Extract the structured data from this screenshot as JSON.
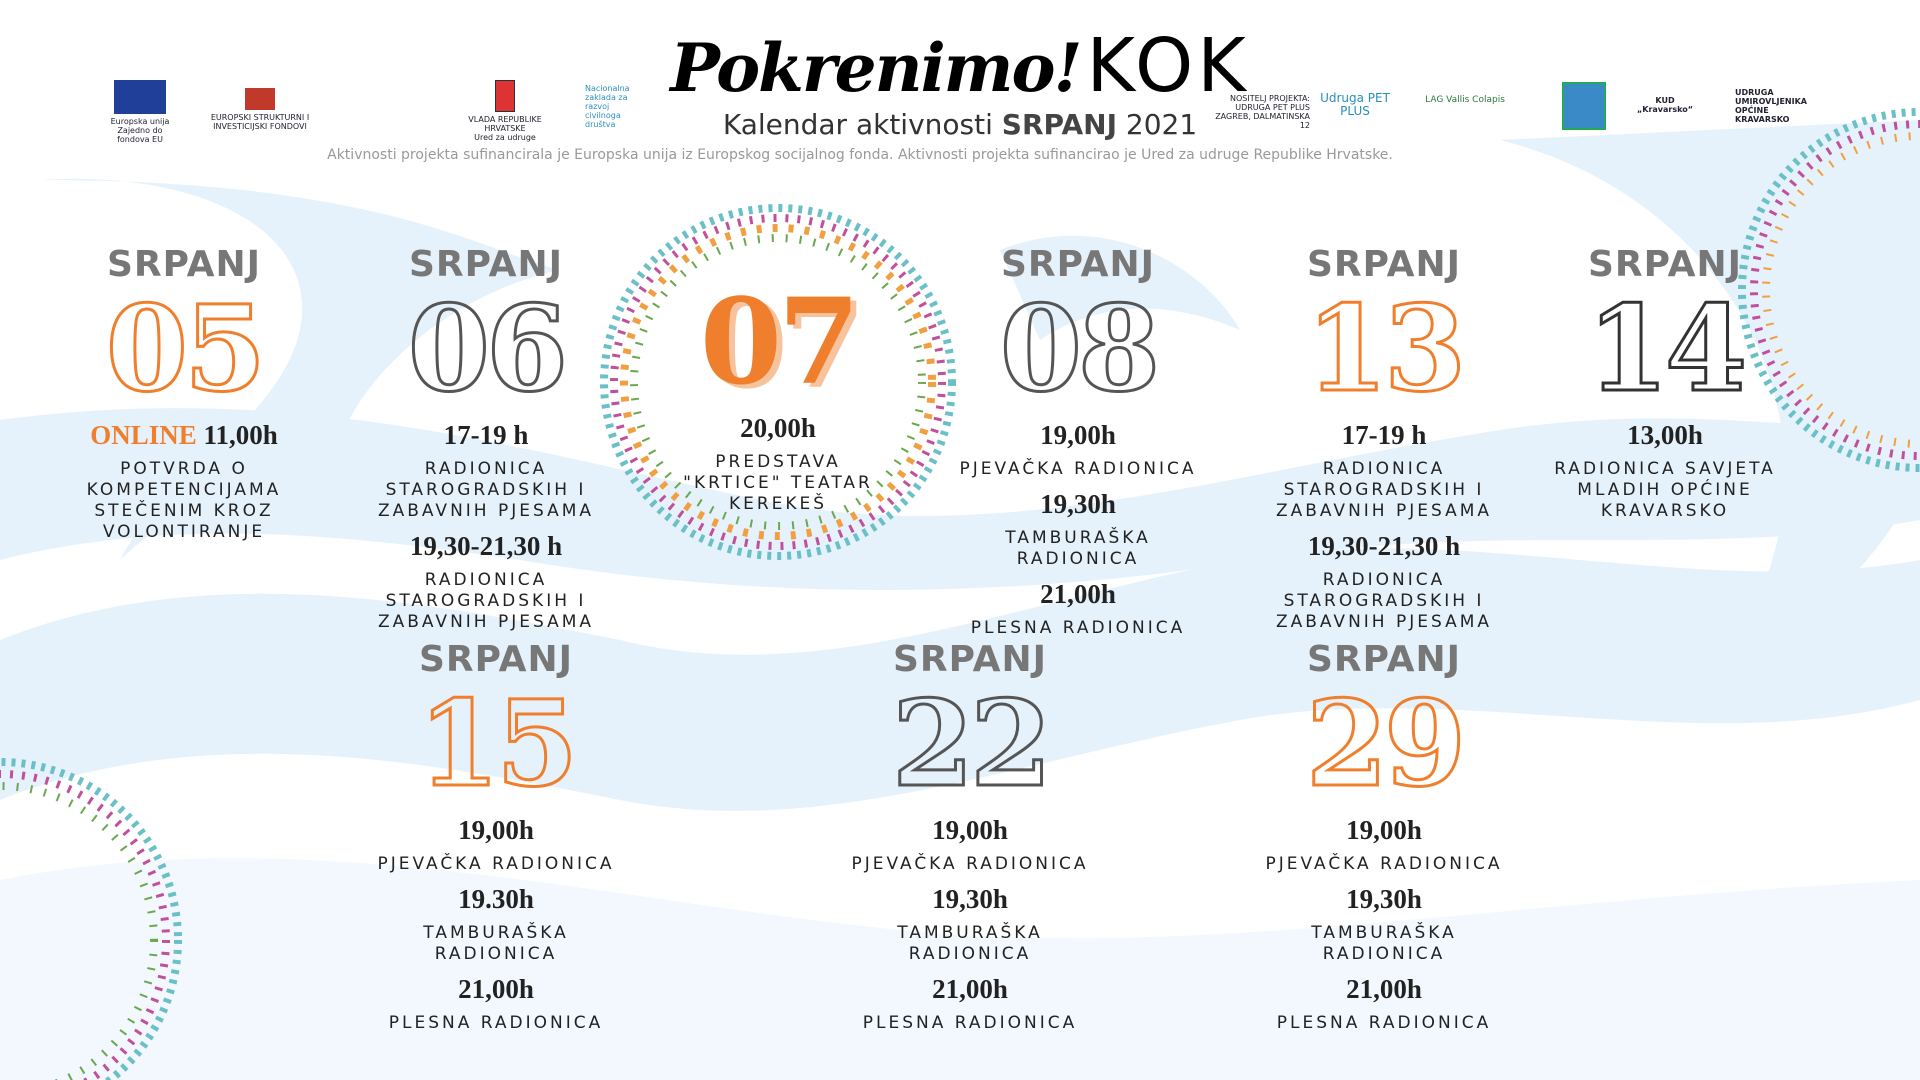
{
  "header": {
    "brand_left": "Pokrenimo!",
    "brand_right": "KOK",
    "subtitle_prefix": "Kalendar aktivnosti",
    "subtitle_month": "SRPANJ",
    "subtitle_year": "2021",
    "note": "Aktivnosti projekta sufinancirala je Europska unija iz Europskog socijalnog fonda.  Aktivnosti projekta sufinancirao je Ured za udruge Republike Hrvatske."
  },
  "logos": [
    "Europska unija Zajedno do fondova EU",
    "EUROPSKI STRUKTURNI I INVESTICIJSKI FONDOVI",
    "VLADA REPUBLIKE HRVATSKE",
    "Ured za udruge",
    "Nacionalna zaklada za razvoj civilnoga društva",
    "NOSITELJ PROJEKTA: UDRUGA PET PLUS ZAGREB, DALMATINSKA 12",
    "Udruga PET PLUS",
    "LAG Vallis Colapis",
    "KUD „Kravarsko“",
    "UDRUGA UMIROVLJENIKA OPĆINE KRAVARSKO"
  ],
  "days": [
    {
      "month": "SRPANJ",
      "day": "05",
      "color": "#f07f2d",
      "filled": false,
      "entries": [
        {
          "tag": "ONLINE",
          "time": "11,00h",
          "label": "POTVRDA O KOMPETENCIJAMA STEČENIM KROZ VOLONTIRANJE"
        }
      ]
    },
    {
      "month": "SRPANJ",
      "day": "06",
      "color": "#555555",
      "filled": false,
      "entries": [
        {
          "time": "17-19 h",
          "label": "RADIONICA STAROGRADSKIH I ZABAVNIH PJESAMA"
        },
        {
          "time": "19,30-21,30 h",
          "label": "RADIONICA STAROGRADSKIH I ZABAVNIH PJESAMA"
        }
      ]
    },
    {
      "month": null,
      "day": "07",
      "color": "#f07f2d",
      "filled": true,
      "entries": [
        {
          "time": "20,00h",
          "label": "PREDSTAVA \"KRTICE\" TEATAR KEREKEŠ"
        }
      ]
    },
    {
      "month": "SRPANJ",
      "day": "08",
      "color": "#555555",
      "filled": false,
      "entries": [
        {
          "time": "19,00h",
          "label": "PJEVAČKA RADIONICA"
        },
        {
          "time": "19,30h",
          "label": "TAMBURAŠKA RADIONICA"
        },
        {
          "time": "21,00h",
          "label": "PLESNA RADIONICA"
        }
      ]
    },
    {
      "month": "SRPANJ",
      "day": "13",
      "color": "#f07f2d",
      "filled": false,
      "entries": [
        {
          "time": "17-19 h",
          "label": "RADIONICA STAROGRADSKIH I ZABAVNIH PJESAMA"
        },
        {
          "time": "19,30-21,30 h",
          "label": "RADIONICA STAROGRADSKIH I ZABAVNIH PJESAMA"
        }
      ]
    },
    {
      "month": "SRPANJ",
      "day": "14",
      "color": "#333333",
      "filled": false,
      "entries": [
        {
          "time": "13,00h",
          "label": "RADIONICA SAVJETA MLADIH OPĆINE KRAVARSKO"
        }
      ]
    },
    {
      "month": "SRPANJ",
      "day": "15",
      "color": "#f07f2d",
      "filled": false,
      "entries": [
        {
          "time": "19,00h",
          "label": "PJEVAČKA RADIONICA"
        },
        {
          "time": "19.30h",
          "label": "TAMBURAŠKA RADIONICA"
        },
        {
          "time": "21,00h",
          "label": "PLESNA RADIONICA"
        }
      ]
    },
    {
      "month": "SRPANJ",
      "day": "22",
      "color": "#555555",
      "filled": false,
      "entries": [
        {
          "time": "19,00h",
          "label": "PJEVAČKA RADIONICA"
        },
        {
          "time": "19,30h",
          "label": "TAMBURAŠKA RADIONICA"
        },
        {
          "time": "21,00h",
          "label": "PLESNA RADIONICA"
        }
      ]
    },
    {
      "month": "SRPANJ",
      "day": "29",
      "color": "#f07f2d",
      "filled": false,
      "entries": [
        {
          "time": "19,00h",
          "label": "PJEVAČKA RADIONICA"
        },
        {
          "time": "19,30h",
          "label": "TAMBURAŠKA RADIONICA"
        },
        {
          "time": "21,00h",
          "label": "PLESNA RADIONICA"
        }
      ]
    }
  ]
}
